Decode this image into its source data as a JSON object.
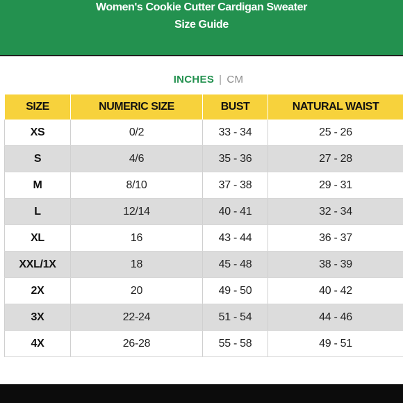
{
  "header": {
    "title_line1": "Women's Cookie Cutter Cardigan Sweater",
    "title_line2": "Size Guide"
  },
  "units": {
    "inches": "INCHES",
    "separator": "|",
    "cm": "CM",
    "active": "INCHES"
  },
  "table": {
    "columns": [
      "SIZE",
      "NUMERIC SIZE",
      "BUST",
      "NATURAL WAIST"
    ],
    "rows": [
      {
        "size": "XS",
        "numeric": "0/2",
        "bust": "33 - 34",
        "waist": "25 - 26"
      },
      {
        "size": "S",
        "numeric": "4/6",
        "bust": "35 - 36",
        "waist": "27 - 28"
      },
      {
        "size": "M",
        "numeric": "8/10",
        "bust": "37 - 38",
        "waist": "29 - 31"
      },
      {
        "size": "L",
        "numeric": "12/14",
        "bust": "40 - 41",
        "waist": "32 - 34"
      },
      {
        "size": "XL",
        "numeric": "16",
        "bust": "43 - 44",
        "waist": "36 - 37"
      },
      {
        "size": "XXL/1X",
        "numeric": "18",
        "bust": "45 - 48",
        "waist": "38 - 39"
      },
      {
        "size": "2X",
        "numeric": "20",
        "bust": "49 - 50",
        "waist": "40 - 42"
      },
      {
        "size": "3X",
        "numeric": "22-24",
        "bust": "51 - 54",
        "waist": "44 - 46"
      },
      {
        "size": "4X",
        "numeric": "26-28",
        "bust": "55 - 58",
        "waist": "49 - 51"
      }
    ]
  },
  "colors": {
    "header_bg": "#23914f",
    "table_header_bg": "#f7d23c",
    "alt_row_bg": "#dcdcdc",
    "footer_bg": "#0c0c0c"
  }
}
